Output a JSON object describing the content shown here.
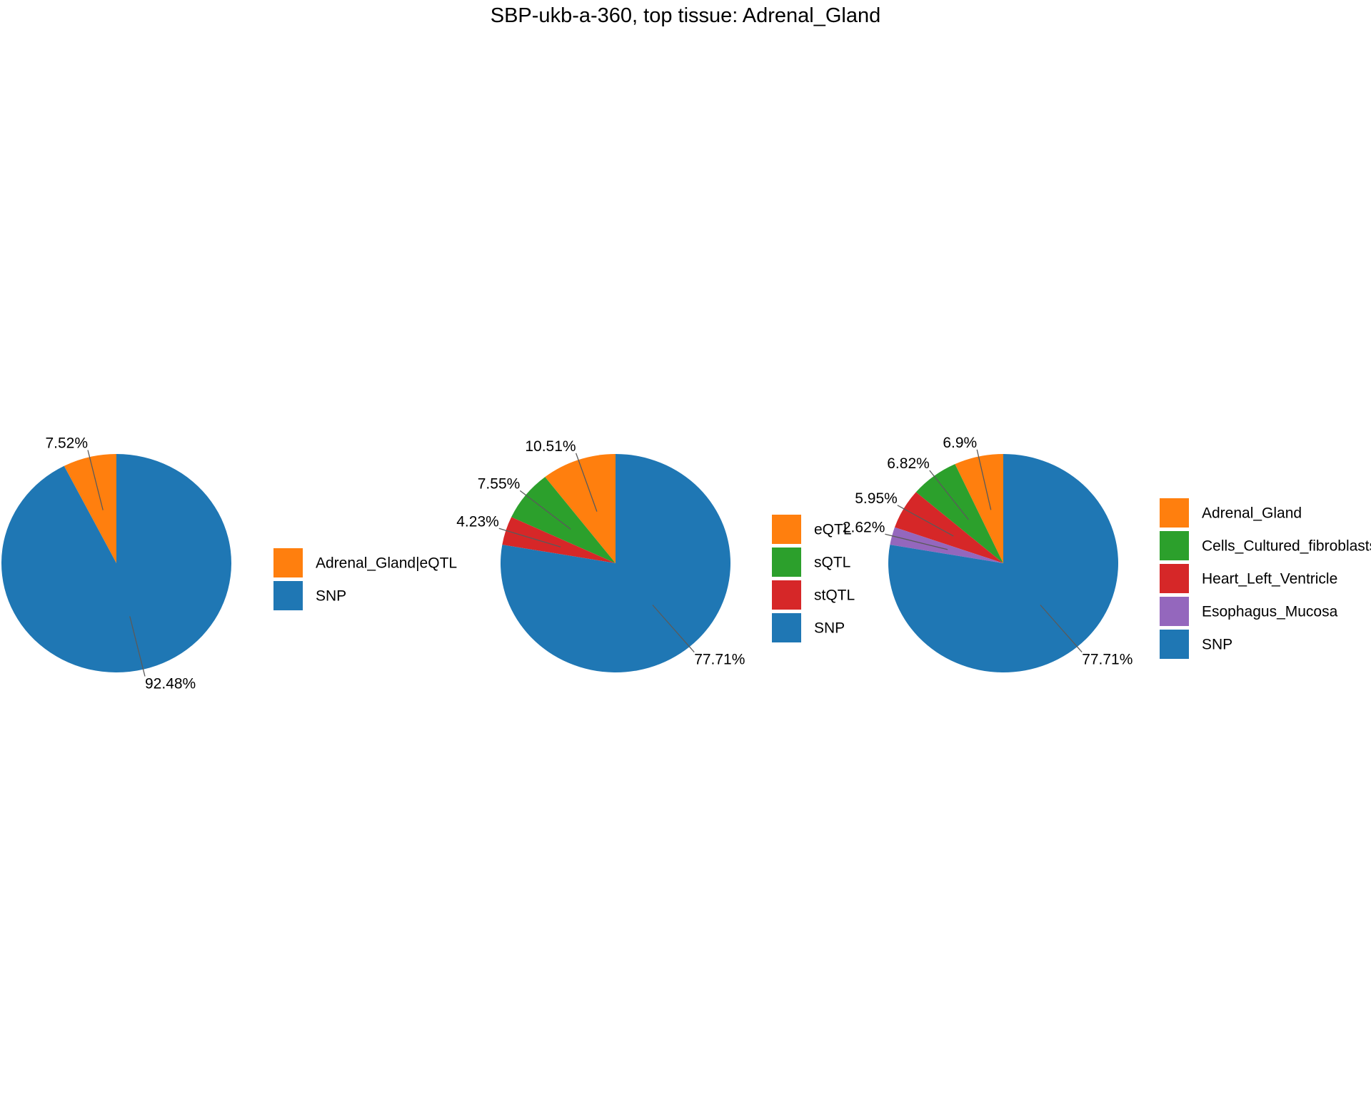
{
  "title": "SBP-ukb-a-360, top tissue: Adrenal_Gland",
  "chart_data": [
    {
      "type": "pie",
      "direction": "counterclockwise from top",
      "slices": [
        {
          "label": "Adrenal_Gland|eQTL",
          "value": 7.52,
          "value_label": "7.52%",
          "color": "#FF7F0E"
        },
        {
          "label": "SNP",
          "value": 92.48,
          "value_label": "92.48%",
          "color": "#1F77B4"
        }
      ],
      "legend": [
        "Adrenal_Gland|eQTL",
        "SNP"
      ],
      "legend_position": "right"
    },
    {
      "type": "pie",
      "direction": "counterclockwise from top",
      "slices": [
        {
          "label": "eQTL",
          "value": 10.51,
          "value_label": "10.51%",
          "color": "#FF7F0E"
        },
        {
          "label": "sQTL",
          "value": 7.55,
          "value_label": "7.55%",
          "color": "#2CA02C"
        },
        {
          "label": "stQTL",
          "value": 4.23,
          "value_label": "4.23%",
          "color": "#D62728"
        },
        {
          "label": "SNP",
          "value": 77.71,
          "value_label": "77.71%",
          "color": "#1F77B4"
        }
      ],
      "legend": [
        "eQTL",
        "sQTL",
        "stQTL",
        "SNP"
      ],
      "legend_position": "right"
    },
    {
      "type": "pie",
      "direction": "counterclockwise from top",
      "slices": [
        {
          "label": "Adrenal_Gland",
          "value": 6.9,
          "value_label": "6.9%",
          "color": "#FF7F0E"
        },
        {
          "label": "Cells_Cultured_fibroblasts",
          "value": 6.82,
          "value_label": "6.82%",
          "color": "#2CA02C"
        },
        {
          "label": "Heart_Left_Ventricle",
          "value": 5.95,
          "value_label": "5.95%",
          "color": "#D62728"
        },
        {
          "label": "Esophagus_Mucosa",
          "value": 2.62,
          "value_label": "2.62%",
          "color": "#9467BD"
        },
        {
          "label": "SNP",
          "value": 77.71,
          "value_label": "77.71%",
          "color": "#1F77B4"
        }
      ],
      "legend": [
        "Adrenal_Gland",
        "Cells_Cultured_fibroblasts",
        "Heart_Left_Ventricle",
        "Esophagus_Mucosa",
        "SNP"
      ],
      "legend_position": "right"
    }
  ]
}
